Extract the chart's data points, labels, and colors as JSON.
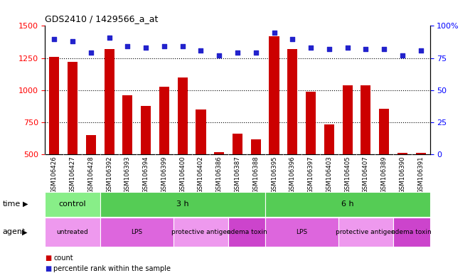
{
  "title": "GDS2410 / 1429566_a_at",
  "samples": [
    "GSM106426",
    "GSM106427",
    "GSM106428",
    "GSM106392",
    "GSM106393",
    "GSM106394",
    "GSM106399",
    "GSM106400",
    "GSM106402",
    "GSM106386",
    "GSM106387",
    "GSM106388",
    "GSM106395",
    "GSM106396",
    "GSM106397",
    "GSM106403",
    "GSM106405",
    "GSM106407",
    "GSM106389",
    "GSM106390",
    "GSM106391"
  ],
  "counts": [
    1258,
    1218,
    648,
    1320,
    960,
    878,
    1025,
    1100,
    851,
    515,
    660,
    615,
    1420,
    1320,
    990,
    730,
    1040,
    1040,
    855,
    510,
    510
  ],
  "percentile_ranks": [
    90,
    88,
    79,
    91,
    84,
    83,
    84,
    84,
    81,
    77,
    79,
    79,
    95,
    90,
    83,
    82,
    83,
    82,
    82,
    77,
    81
  ],
  "bar_color": "#cc0000",
  "dot_color": "#2222cc",
  "ylim_left": [
    500,
    1500
  ],
  "ylim_right": [
    0,
    100
  ],
  "yticks_left": [
    500,
    750,
    1000,
    1250,
    1500
  ],
  "yticks_right": [
    0,
    25,
    50,
    75,
    100
  ],
  "grid_values": [
    750,
    1000,
    1250
  ],
  "time_groups": [
    {
      "label": "control",
      "start": 0,
      "end": 3,
      "color": "#88ee88"
    },
    {
      "label": "3 h",
      "start": 3,
      "end": 12,
      "color": "#55cc55"
    },
    {
      "label": "6 h",
      "start": 12,
      "end": 21,
      "color": "#55cc55"
    }
  ],
  "agent_groups": [
    {
      "label": "untreated",
      "start": 0,
      "end": 3,
      "color": "#ee99ee"
    },
    {
      "label": "LPS",
      "start": 3,
      "end": 7,
      "color": "#dd66dd"
    },
    {
      "label": "protective antigen",
      "start": 7,
      "end": 10,
      "color": "#ee99ee"
    },
    {
      "label": "edema toxin",
      "start": 10,
      "end": 12,
      "color": "#cc44cc"
    },
    {
      "label": "LPS",
      "start": 12,
      "end": 16,
      "color": "#dd66dd"
    },
    {
      "label": "protective antigen",
      "start": 16,
      "end": 19,
      "color": "#ee99ee"
    },
    {
      "label": "edema toxin",
      "start": 19,
      "end": 21,
      "color": "#cc44cc"
    }
  ],
  "background_color": "#ffffff",
  "plot_bg_color": "#ffffff",
  "tick_bg_color": "#e0e0e0",
  "legend_count_label": "count",
  "legend_pct_label": "percentile rank within the sample"
}
